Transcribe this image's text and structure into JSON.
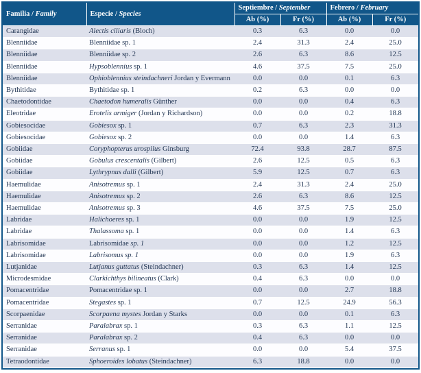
{
  "colors": {
    "header_bg": "#115689",
    "border": "#115689",
    "row_shaded": "#dde0eb",
    "row_plain": "#fdfdff",
    "header_text": "#ffffff",
    "body_text": "#1e3250"
  },
  "header": {
    "family": {
      "es": "Familia",
      "sep": " / ",
      "en": "Family"
    },
    "species": {
      "es": "Especie",
      "sep": " / ",
      "en": "Species"
    },
    "september": {
      "es": "Septiembre",
      "sep": " / ",
      "en": "September"
    },
    "february": {
      "es": "Febrero",
      "sep": " / ",
      "en": "February"
    },
    "ab": "Ab (%)",
    "fr": "Fr (%)"
  },
  "rows": [
    {
      "family": "Carangidae",
      "species": [
        {
          "t": "Alectis ciliaris",
          "i": true
        },
        {
          "t": " (Bloch)",
          "i": false
        }
      ],
      "sep_ab": "0.3",
      "sep_fr": "6.3",
      "feb_ab": "0.0",
      "feb_fr": "0.0"
    },
    {
      "family": "Blenniidae",
      "species": [
        {
          "t": "Blenniidae sp. 1",
          "i": false
        }
      ],
      "sep_ab": "2.4",
      "sep_fr": "31.3",
      "feb_ab": "2.4",
      "feb_fr": "25.0"
    },
    {
      "family": "Blenniidae",
      "species": [
        {
          "t": "Blenniidae sp. 2",
          "i": false
        }
      ],
      "sep_ab": "2.6",
      "sep_fr": "6.3",
      "feb_ab": "8.6",
      "feb_fr": "12.5"
    },
    {
      "family": "Blenniidae",
      "species": [
        {
          "t": "Hypsoblennius",
          "i": true
        },
        {
          "t": " sp. 1",
          "i": false
        }
      ],
      "sep_ab": "4.6",
      "sep_fr": "37.5",
      "feb_ab": "7.5",
      "feb_fr": "25.0"
    },
    {
      "family": "Blenniidae",
      "species": [
        {
          "t": "Ophioblennius steindachneri",
          "i": true
        },
        {
          "t": " Jordan y Evermann",
          "i": false
        }
      ],
      "sep_ab": "0.0",
      "sep_fr": "0.0",
      "feb_ab": "0.1",
      "feb_fr": "6.3"
    },
    {
      "family": "Bythitidae",
      "species": [
        {
          "t": "Bythitidae sp. 1",
          "i": false
        }
      ],
      "sep_ab": "0.2",
      "sep_fr": "6.3",
      "feb_ab": "0.0",
      "feb_fr": "0.0"
    },
    {
      "family": "Chaetodontidae",
      "species": [
        {
          "t": "Chaetodon humeralis",
          "i": true
        },
        {
          "t": " Günther",
          "i": false
        }
      ],
      "sep_ab": "0.0",
      "sep_fr": "0.0",
      "feb_ab": "0.4",
      "feb_fr": "6.3"
    },
    {
      "family": "Eleotridae",
      "species": [
        {
          "t": "Erotelis armiger",
          "i": true
        },
        {
          "t": " (Jordan y Richardson)",
          "i": false
        }
      ],
      "sep_ab": "0.0",
      "sep_fr": "0.0",
      "feb_ab": "0.2",
      "feb_fr": "18.8"
    },
    {
      "family": "Gobiesocidae",
      "species": [
        {
          "t": "Gobiesox",
          "i": true
        },
        {
          "t": " sp. 1",
          "i": false
        }
      ],
      "sep_ab": "0.7",
      "sep_fr": "6.3",
      "feb_ab": "2.3",
      "feb_fr": "31.3"
    },
    {
      "family": "Gobiesocidae",
      "species": [
        {
          "t": "Gobiesox",
          "i": true
        },
        {
          "t": " sp. 2",
          "i": false
        }
      ],
      "sep_ab": "0.0",
      "sep_fr": "0.0",
      "feb_ab": "1.4",
      "feb_fr": "6.3"
    },
    {
      "family": "Gobiidae",
      "species": [
        {
          "t": "Coryphopterus urospilus",
          "i": true
        },
        {
          "t": " Ginsburg",
          "i": false
        }
      ],
      "sep_ab": "72.4",
      "sep_fr": "93.8",
      "feb_ab": "28.7",
      "feb_fr": "87.5"
    },
    {
      "family": "Gobiidae",
      "species": [
        {
          "t": "Gobulus crescentalis",
          "i": true
        },
        {
          "t": " (Gilbert)",
          "i": false
        }
      ],
      "sep_ab": "2.6",
      "sep_fr": "12.5",
      "feb_ab": "0.5",
      "feb_fr": "6.3"
    },
    {
      "family": "Gobiidae",
      "species": [
        {
          "t": "Lythrypnus dalli",
          "i": true
        },
        {
          "t": " (Gilbert)",
          "i": false
        }
      ],
      "sep_ab": "5.9",
      "sep_fr": "12.5",
      "feb_ab": "0.7",
      "feb_fr": "6.3"
    },
    {
      "family": "Haemulidae",
      "species": [
        {
          "t": "Anisotremus",
          "i": true
        },
        {
          "t": " sp. 1",
          "i": false
        }
      ],
      "sep_ab": "2.4",
      "sep_fr": "31.3",
      "feb_ab": "2.4",
      "feb_fr": "25.0"
    },
    {
      "family": "Haemulidae",
      "species": [
        {
          "t": "Anisotremus",
          "i": true
        },
        {
          "t": " sp. 2",
          "i": false
        }
      ],
      "sep_ab": "2.6",
      "sep_fr": "6.3",
      "feb_ab": "8.6",
      "feb_fr": "12.5"
    },
    {
      "family": "Haemulidae",
      "species": [
        {
          "t": "Anisotremus",
          "i": true
        },
        {
          "t": " sp. 3",
          "i": false
        }
      ],
      "sep_ab": "4.6",
      "sep_fr": "37.5",
      "feb_ab": "7.5",
      "feb_fr": "25.0"
    },
    {
      "family": "Labridae",
      "species": [
        {
          "t": "Halichoeres",
          "i": true
        },
        {
          "t": " sp. 1",
          "i": false
        }
      ],
      "sep_ab": "0.0",
      "sep_fr": "0.0",
      "feb_ab": "1.9",
      "feb_fr": "12.5"
    },
    {
      "family": "Labridae",
      "species": [
        {
          "t": "Thalassoma",
          "i": true
        },
        {
          "t": " sp. 1",
          "i": false
        }
      ],
      "sep_ab": "0.0",
      "sep_fr": "0.0",
      "feb_ab": "1.4",
      "feb_fr": "6.3"
    },
    {
      "family": "Labrisomidae",
      "species": [
        {
          "t": "Labrisomidae ",
          "i": false
        },
        {
          "t": "sp. 1",
          "i": true
        }
      ],
      "sep_ab": "0.0",
      "sep_fr": "0.0",
      "feb_ab": "1.2",
      "feb_fr": "12.5"
    },
    {
      "family": "Labrisomidae",
      "species": [
        {
          "t": "Labrisomus sp. 1",
          "i": true
        }
      ],
      "sep_ab": "0.0",
      "sep_fr": "0.0",
      "feb_ab": "1.9",
      "feb_fr": "6.3"
    },
    {
      "family": "Lutjanidae",
      "species": [
        {
          "t": "Lutjanus guttatus",
          "i": true
        },
        {
          "t": " (Steindachner)",
          "i": false
        }
      ],
      "sep_ab": "0.3",
      "sep_fr": "6.3",
      "feb_ab": "1.4",
      "feb_fr": "12.5"
    },
    {
      "family": "Microdesmidae",
      "species": [
        {
          "t": "Clarkichthys bilineatus",
          "i": true
        },
        {
          "t": " (Clark)",
          "i": false
        }
      ],
      "sep_ab": "0.4",
      "sep_fr": "6.3",
      "feb_ab": "0.0",
      "feb_fr": "0.0"
    },
    {
      "family": "Pomacentridae",
      "species": [
        {
          "t": "Pomacentridae sp. 1",
          "i": false
        }
      ],
      "sep_ab": "0.0",
      "sep_fr": "0.0",
      "feb_ab": "2.7",
      "feb_fr": "18.8"
    },
    {
      "family": "Pomacentridae",
      "species": [
        {
          "t": "Stegastes",
          "i": true
        },
        {
          "t": " sp. 1",
          "i": false
        }
      ],
      "sep_ab": "0.7",
      "sep_fr": "12.5",
      "feb_ab": "24.9",
      "feb_fr": "56.3"
    },
    {
      "family": "Scorpaenidae",
      "species": [
        {
          "t": "Scorpaena mystes",
          "i": true
        },
        {
          "t": " Jordan y Starks",
          "i": false
        }
      ],
      "sep_ab": "0.0",
      "sep_fr": "0.0",
      "feb_ab": "0.1",
      "feb_fr": "6.3"
    },
    {
      "family": "Serranidae",
      "species": [
        {
          "t": "Paralabrax",
          "i": true
        },
        {
          "t": " sp. 1",
          "i": false
        }
      ],
      "sep_ab": "0.3",
      "sep_fr": "6.3",
      "feb_ab": "1.1",
      "feb_fr": "12.5"
    },
    {
      "family": "Serranidae",
      "species": [
        {
          "t": "Paralabrax",
          "i": true
        },
        {
          "t": " sp. 2",
          "i": false
        }
      ],
      "sep_ab": "0.4",
      "sep_fr": "6.3",
      "feb_ab": "0.0",
      "feb_fr": "0.0"
    },
    {
      "family": "Serranidae",
      "species": [
        {
          "t": "Serranus",
          "i": true
        },
        {
          "t": " sp. 1",
          "i": false
        }
      ],
      "sep_ab": "0.0",
      "sep_fr": "0.0",
      "feb_ab": "5.4",
      "feb_fr": "37.5"
    },
    {
      "family": "Tetraodontidae",
      "species": [
        {
          "t": "Sphoeroides lobatus",
          "i": true
        },
        {
          "t": " (Steindachner)",
          "i": false
        }
      ],
      "sep_ab": "6.3",
      "sep_fr": "18.8",
      "feb_ab": "0.0",
      "feb_fr": "0.0"
    }
  ]
}
